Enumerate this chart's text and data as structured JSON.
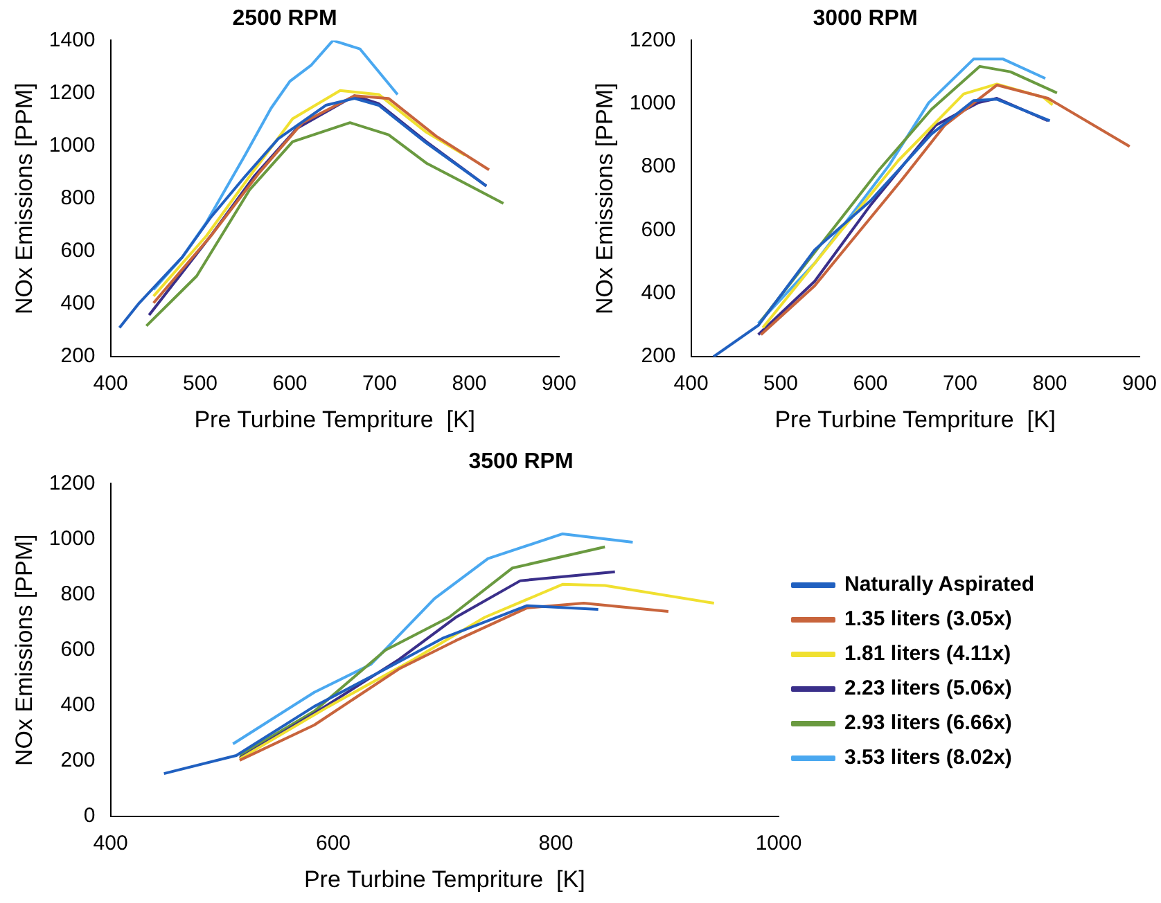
{
  "chart_data": [
    {
      "type": "line",
      "title": "2500 RPM",
      "xlabel": "Pre Turbine Tempriture  [K]",
      "ylabel": "NOx Emissions [PPM]",
      "xlim": [
        400,
        900
      ],
      "xticks": [
        400,
        500,
        600,
        700,
        800,
        900
      ],
      "ylim": [
        200,
        1400
      ],
      "yticks": [
        200,
        400,
        600,
        800,
        1000,
        1200,
        1400
      ],
      "grid": false,
      "legend": false,
      "marker": "none",
      "series": [
        {
          "color": "#2060c0",
          "x": [
            410,
            432,
            480,
            512,
            550,
            587,
            640,
            672,
            699,
            752,
            819
          ],
          "values": [
            310,
            404,
            578,
            730,
            884,
            1027,
            1154,
            1180,
            1154,
            1011,
            848
          ]
        },
        {
          "color": "#c8643c",
          "x": [
            448,
            512,
            566,
            614,
            672,
            710,
            763,
            822
          ],
          "values": [
            404,
            659,
            899,
            1088,
            1190,
            1180,
            1037,
            909
          ]
        },
        {
          "color": "#f0e030",
          "x": [
            448,
            507,
            555,
            603,
            656,
            699,
            752,
            795
          ],
          "values": [
            430,
            659,
            884,
            1103,
            1210,
            1195,
            1052,
            965
          ]
        },
        {
          "color": "#3a2f8a",
          "x": [
            443,
            512,
            560,
            608,
            672,
            699,
            752,
            819
          ],
          "values": [
            358,
            660,
            884,
            1067,
            1190,
            1160,
            1016,
            848
          ]
        },
        {
          "color": "#6a9a40",
          "x": [
            440,
            496,
            555,
            603,
            667,
            710,
            752,
            838
          ],
          "values": [
            317,
            506,
            833,
            1016,
            1088,
            1042,
            935,
            782
          ]
        },
        {
          "color": "#4aa8f0",
          "x": [
            448,
            480,
            507,
            550,
            579,
            600,
            624,
            648,
            678,
            720
          ],
          "values": [
            455,
            578,
            710,
            965,
            1143,
            1245,
            1307,
            1400,
            1368,
            1195
          ]
        }
      ]
    },
    {
      "type": "line",
      "title": "3000 RPM",
      "xlabel": "Pre Turbine Tempriture  [K]",
      "ylabel": "NOx Emissions [PPM]",
      "xlim": [
        400,
        900
      ],
      "xticks": [
        400,
        500,
        600,
        700,
        800,
        900
      ],
      "ylim": [
        200,
        1200
      ],
      "yticks": [
        200,
        400,
        600,
        800,
        1000,
        1200
      ],
      "grid": false,
      "legend": false,
      "marker": "none",
      "series": [
        {
          "color": "#2060c0",
          "x": [
            425,
            475,
            538,
            600,
            668,
            715,
            741,
            800
          ],
          "values": [
            200,
            299,
            538,
            693,
            904,
            1010,
            1014,
            946
          ]
        },
        {
          "color": "#c8643c",
          "x": [
            478,
            538,
            636,
            683,
            741,
            798,
            889
          ],
          "values": [
            270,
            425,
            763,
            932,
            1059,
            1017,
            865
          ]
        },
        {
          "color": "#f0e030",
          "x": [
            480,
            558,
            631,
            704,
            741,
            793,
            803
          ],
          "values": [
            292,
            566,
            820,
            1031,
            1062,
            1020,
            996
          ]
        },
        {
          "color": "#3a2f8a",
          "x": [
            475,
            538,
            600,
            673,
            720,
            741,
            798
          ],
          "values": [
            270,
            439,
            679,
            932,
            1003,
            1017,
            946
          ]
        },
        {
          "color": "#6a9a40",
          "x": [
            478,
            610,
            668,
            722,
            756,
            808
          ],
          "values": [
            313,
            792,
            982,
            1118,
            1101,
            1034
          ]
        },
        {
          "color": "#4aa8f0",
          "x": [
            475,
            538,
            621,
            665,
            715,
            748,
            795
          ],
          "values": [
            306,
            496,
            806,
            1003,
            1141,
            1141,
            1080
          ]
        }
      ]
    },
    {
      "type": "line",
      "title": "3500 RPM",
      "xlabel": "Pre Turbine Tempriture  [K]",
      "ylabel": "NOx Emissions [PPM]",
      "xlim": [
        400,
        1000
      ],
      "xticks": [
        400,
        600,
        800,
        1000
      ],
      "ylim": [
        0,
        1200
      ],
      "yticks": [
        0,
        200,
        400,
        600,
        800,
        1000,
        1200
      ],
      "grid": false,
      "legend": "right",
      "marker": "none",
      "series": [
        {
          "name": "Naturally Aspirated",
          "color": "#2060c0",
          "x": [
            448,
            513,
            583,
            647,
            698,
            774,
            838
          ],
          "values": [
            155,
            220,
            397,
            532,
            642,
            760,
            747
          ]
        },
        {
          "name": "1.35 liters (3.05x)",
          "color": "#c8643c",
          "x": [
            516,
            583,
            659,
            710,
            774,
            825,
            901
          ],
          "values": [
            203,
            330,
            532,
            634,
            752,
            769,
            739
          ]
        },
        {
          "name": "1.81 liters (4.11x)",
          "color": "#f0e030",
          "x": [
            516,
            596,
            672,
            736,
            806,
            844,
            942
          ],
          "values": [
            208,
            397,
            566,
            718,
            837,
            833,
            769
          ]
        },
        {
          "name": "2.23 liters (5.06x)",
          "color": "#3a2f8a",
          "x": [
            516,
            583,
            659,
            710,
            768,
            853
          ],
          "values": [
            211,
            372,
            566,
            718,
            850,
            882
          ]
        },
        {
          "name": "2.93 liters (6.66x)",
          "color": "#6a9a40",
          "x": [
            516,
            583,
            647,
            704,
            761,
            844
          ],
          "values": [
            220,
            380,
            600,
            718,
            896,
            972
          ]
        },
        {
          "name": "3.53 liters (8.02x)",
          "color": "#4aa8f0",
          "x": [
            510,
            583,
            634,
            691,
            739,
            806,
            869
          ],
          "values": [
            262,
            448,
            549,
            786,
            930,
            1019,
            989
          ]
        }
      ]
    }
  ]
}
